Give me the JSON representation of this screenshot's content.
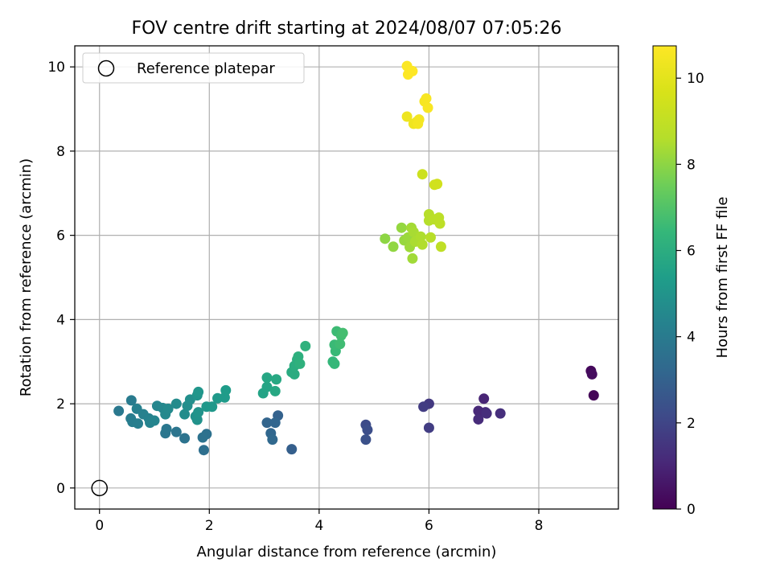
{
  "chart_data": {
    "type": "scatter",
    "title": "FOV centre drift starting at 2024/08/07 07:05:26",
    "xlabel": "Angular distance from reference (arcmin)",
    "ylabel": "Rotation from reference (arcmin)",
    "xlim": [
      -0.45,
      9.45
    ],
    "ylim": [
      -0.5,
      10.5
    ],
    "xticks": [
      0,
      2,
      4,
      6,
      8
    ],
    "yticks": [
      0,
      2,
      4,
      6,
      8,
      10
    ],
    "grid": true,
    "legend": {
      "placement": "top-left",
      "entries": [
        "Reference platepar"
      ]
    },
    "reference_point": {
      "name": "Reference platepar",
      "x": 0,
      "y": 0,
      "marker": "open-circle"
    },
    "colorbar": {
      "label": "Hours from first FF file",
      "range": [
        0,
        10.75
      ],
      "ticks": [
        0,
        2,
        4,
        6,
        8,
        10
      ],
      "colormap": "viridis"
    },
    "points": [
      {
        "x": 9.0,
        "y": 2.2,
        "h": 0.1
      },
      {
        "x": 8.95,
        "y": 2.78,
        "h": 0.2
      },
      {
        "x": 8.97,
        "y": 2.7,
        "h": 0.3
      },
      {
        "x": 7.0,
        "y": 2.12,
        "h": 1.0
      },
      {
        "x": 6.9,
        "y": 1.83,
        "h": 1.1
      },
      {
        "x": 6.9,
        "y": 1.63,
        "h": 1.2
      },
      {
        "x": 7.03,
        "y": 1.8,
        "h": 1.15
      },
      {
        "x": 7.05,
        "y": 1.77,
        "h": 1.25
      },
      {
        "x": 7.3,
        "y": 1.77,
        "h": 1.3
      },
      {
        "x": 6.0,
        "y": 2.0,
        "h": 1.6
      },
      {
        "x": 5.9,
        "y": 1.93,
        "h": 1.7
      },
      {
        "x": 6.0,
        "y": 1.43,
        "h": 1.75
      },
      {
        "x": 4.85,
        "y": 1.5,
        "h": 2.2
      },
      {
        "x": 4.88,
        "y": 1.38,
        "h": 2.3
      },
      {
        "x": 4.85,
        "y": 1.15,
        "h": 2.4
      },
      {
        "x": 3.5,
        "y": 0.92,
        "h": 2.9
      },
      {
        "x": 3.25,
        "y": 1.72,
        "h": 3.0
      },
      {
        "x": 3.05,
        "y": 1.55,
        "h": 3.1
      },
      {
        "x": 3.2,
        "y": 1.55,
        "h": 3.15
      },
      {
        "x": 3.12,
        "y": 1.3,
        "h": 3.2
      },
      {
        "x": 3.15,
        "y": 1.15,
        "h": 3.25
      },
      {
        "x": 1.9,
        "y": 0.9,
        "h": 3.5
      },
      {
        "x": 1.95,
        "y": 1.28,
        "h": 3.6
      },
      {
        "x": 1.88,
        "y": 1.2,
        "h": 3.65
      },
      {
        "x": 1.55,
        "y": 1.18,
        "h": 3.7
      },
      {
        "x": 1.4,
        "y": 1.33,
        "h": 3.75
      },
      {
        "x": 1.2,
        "y": 1.3,
        "h": 3.8
      },
      {
        "x": 1.22,
        "y": 1.4,
        "h": 3.85
      },
      {
        "x": 0.35,
        "y": 1.83,
        "h": 3.9
      },
      {
        "x": 0.58,
        "y": 2.08,
        "h": 4.0
      },
      {
        "x": 0.57,
        "y": 1.65,
        "h": 4.05
      },
      {
        "x": 0.6,
        "y": 1.57,
        "h": 4.1
      },
      {
        "x": 0.7,
        "y": 1.53,
        "h": 4.15
      },
      {
        "x": 0.68,
        "y": 1.88,
        "h": 4.2
      },
      {
        "x": 0.8,
        "y": 1.75,
        "h": 4.25
      },
      {
        "x": 0.9,
        "y": 1.65,
        "h": 4.3
      },
      {
        "x": 0.92,
        "y": 1.55,
        "h": 4.35
      },
      {
        "x": 1.0,
        "y": 1.6,
        "h": 4.4
      },
      {
        "x": 1.05,
        "y": 1.95,
        "h": 4.45
      },
      {
        "x": 1.15,
        "y": 1.9,
        "h": 4.5
      },
      {
        "x": 1.2,
        "y": 1.75,
        "h": 4.55
      },
      {
        "x": 1.25,
        "y": 1.88,
        "h": 4.6
      },
      {
        "x": 1.4,
        "y": 2.0,
        "h": 4.65
      },
      {
        "x": 1.55,
        "y": 1.75,
        "h": 4.7
      },
      {
        "x": 1.6,
        "y": 1.95,
        "h": 4.75
      },
      {
        "x": 1.65,
        "y": 2.1,
        "h": 4.8
      },
      {
        "x": 1.75,
        "y": 1.7,
        "h": 4.85
      },
      {
        "x": 1.78,
        "y": 1.62,
        "h": 4.9
      },
      {
        "x": 1.8,
        "y": 1.8,
        "h": 4.95
      },
      {
        "x": 1.78,
        "y": 2.2,
        "h": 5.0
      },
      {
        "x": 1.8,
        "y": 2.28,
        "h": 5.05
      },
      {
        "x": 1.95,
        "y": 1.93,
        "h": 5.1
      },
      {
        "x": 2.05,
        "y": 1.93,
        "h": 5.15
      },
      {
        "x": 2.15,
        "y": 2.13,
        "h": 5.2
      },
      {
        "x": 2.28,
        "y": 2.15,
        "h": 5.25
      },
      {
        "x": 2.3,
        "y": 2.32,
        "h": 5.3
      },
      {
        "x": 2.98,
        "y": 2.25,
        "h": 5.6
      },
      {
        "x": 3.05,
        "y": 2.4,
        "h": 5.65
      },
      {
        "x": 3.05,
        "y": 2.62,
        "h": 5.7
      },
      {
        "x": 3.2,
        "y": 2.3,
        "h": 5.75
      },
      {
        "x": 3.22,
        "y": 2.58,
        "h": 5.8
      },
      {
        "x": 3.5,
        "y": 2.75,
        "h": 5.9
      },
      {
        "x": 3.55,
        "y": 2.7,
        "h": 5.95
      },
      {
        "x": 3.55,
        "y": 2.9,
        "h": 6.0
      },
      {
        "x": 3.6,
        "y": 3.05,
        "h": 6.05
      },
      {
        "x": 3.62,
        "y": 3.12,
        "h": 6.1
      },
      {
        "x": 3.65,
        "y": 2.95,
        "h": 6.15
      },
      {
        "x": 3.75,
        "y": 3.37,
        "h": 6.2
      },
      {
        "x": 4.25,
        "y": 3.0,
        "h": 6.4
      },
      {
        "x": 4.28,
        "y": 2.95,
        "h": 6.45
      },
      {
        "x": 4.3,
        "y": 3.25,
        "h": 6.5
      },
      {
        "x": 4.28,
        "y": 3.4,
        "h": 6.55
      },
      {
        "x": 4.32,
        "y": 3.72,
        "h": 6.6
      },
      {
        "x": 4.38,
        "y": 3.42,
        "h": 6.65
      },
      {
        "x": 4.4,
        "y": 3.62,
        "h": 6.7
      },
      {
        "x": 4.43,
        "y": 3.68,
        "h": 6.75
      },
      {
        "x": 5.2,
        "y": 5.92,
        "h": 8.0
      },
      {
        "x": 5.35,
        "y": 5.73,
        "h": 8.05
      },
      {
        "x": 5.5,
        "y": 6.18,
        "h": 8.1
      },
      {
        "x": 5.55,
        "y": 5.88,
        "h": 8.15
      },
      {
        "x": 5.62,
        "y": 5.95,
        "h": 8.2
      },
      {
        "x": 5.65,
        "y": 5.72,
        "h": 8.25
      },
      {
        "x": 5.7,
        "y": 5.45,
        "h": 8.3
      },
      {
        "x": 5.68,
        "y": 6.18,
        "h": 8.35
      },
      {
        "x": 5.72,
        "y": 6.08,
        "h": 8.4
      },
      {
        "x": 5.75,
        "y": 5.85,
        "h": 8.45
      },
      {
        "x": 5.85,
        "y": 5.97,
        "h": 8.5
      },
      {
        "x": 5.88,
        "y": 5.78,
        "h": 8.55
      },
      {
        "x": 6.0,
        "y": 6.35,
        "h": 8.6
      },
      {
        "x": 6.0,
        "y": 6.5,
        "h": 8.65
      },
      {
        "x": 6.03,
        "y": 5.95,
        "h": 8.7
      },
      {
        "x": 6.1,
        "y": 6.38,
        "h": 8.75
      },
      {
        "x": 6.18,
        "y": 6.42,
        "h": 8.8
      },
      {
        "x": 6.2,
        "y": 6.28,
        "h": 8.85
      },
      {
        "x": 6.22,
        "y": 5.73,
        "h": 8.9
      },
      {
        "x": 5.88,
        "y": 7.45,
        "h": 9.3
      },
      {
        "x": 6.1,
        "y": 7.2,
        "h": 9.4
      },
      {
        "x": 6.15,
        "y": 7.22,
        "h": 9.45
      },
      {
        "x": 5.6,
        "y": 8.82,
        "h": 10.3
      },
      {
        "x": 5.72,
        "y": 8.65,
        "h": 10.35
      },
      {
        "x": 5.78,
        "y": 8.7,
        "h": 10.4
      },
      {
        "x": 5.82,
        "y": 8.75,
        "h": 10.45
      },
      {
        "x": 5.8,
        "y": 8.65,
        "h": 10.5
      },
      {
        "x": 5.92,
        "y": 9.18,
        "h": 10.55
      },
      {
        "x": 5.95,
        "y": 9.25,
        "h": 10.58
      },
      {
        "x": 5.98,
        "y": 9.03,
        "h": 10.6
      },
      {
        "x": 5.6,
        "y": 10.02,
        "h": 10.7
      },
      {
        "x": 5.62,
        "y": 9.82,
        "h": 10.72
      },
      {
        "x": 5.7,
        "y": 9.9,
        "h": 10.75
      }
    ]
  }
}
